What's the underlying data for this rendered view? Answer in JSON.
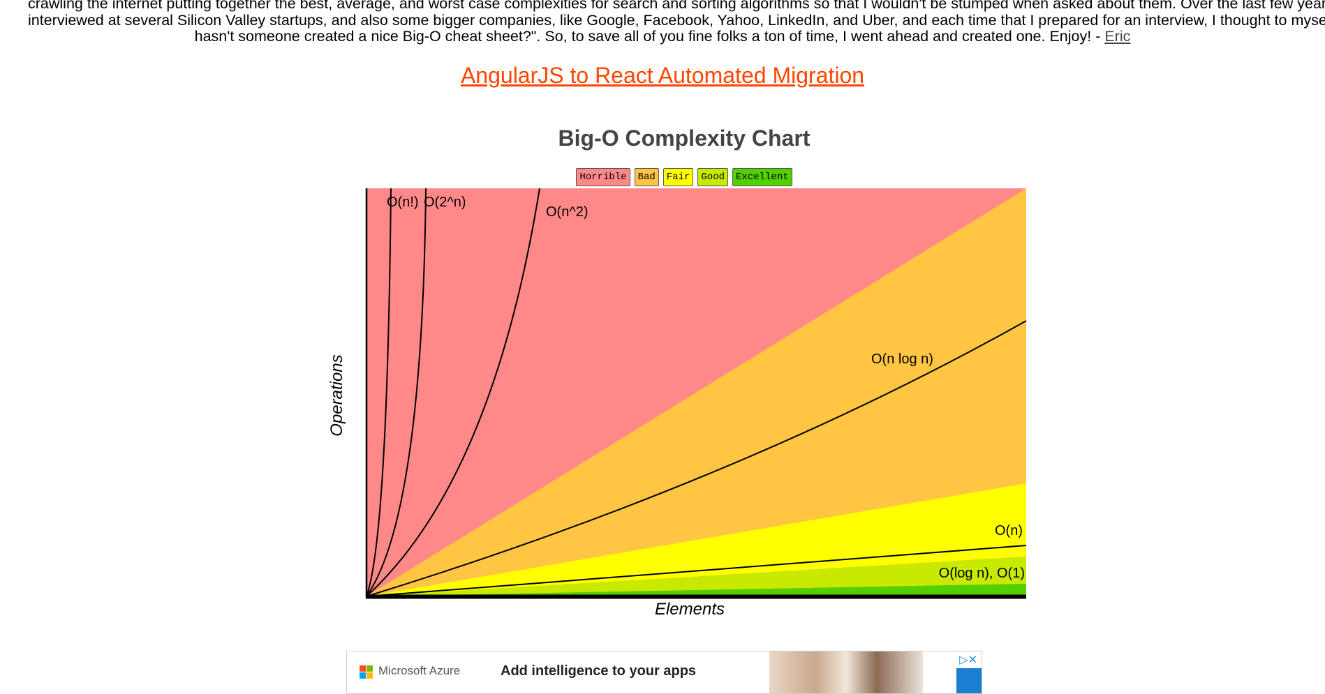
{
  "intro": {
    "line1": "crawling the internet putting together the best, average, and worst case complexities for search and sorting algorithms so that I wouldn't be stumped when asked about them.  Over the last few years, I've",
    "line2": "interviewed at several Silicon Valley startups, and also some bigger companies, like Google, Facebook, Yahoo, LinkedIn, and Uber, and each time that I prepared for an interview, I thought to myself \"Why",
    "line3": "hasn't someone created a nice Big-O cheat sheet?\".  So, to save all of you fine folks a ton of time, I went ahead and created one.  Enjoy! - ",
    "author_link": "Eric"
  },
  "promo_link": "AngularJS to React Automated Migration",
  "legend": [
    {
      "label": "Horrible",
      "color": "#ff8989"
    },
    {
      "label": "Bad",
      "color": "#ffc543"
    },
    {
      "label": "Fair",
      "color": "#ffff00"
    },
    {
      "label": "Good",
      "color": "#c8ea00"
    },
    {
      "label": "Excellent",
      "color": "#53d000"
    }
  ],
  "chart_data": {
    "type": "area",
    "title": "Big-O Complexity Chart",
    "xlabel": "Elements",
    "ylabel": "Operations",
    "grid": false,
    "legend_position": "top",
    "series": [
      {
        "name": "O(n!)"
      },
      {
        "name": "O(2^n)"
      },
      {
        "name": "O(n^2)"
      },
      {
        "name": "O(n log n)"
      },
      {
        "name": "O(n)"
      },
      {
        "name": "O(log n), O(1)"
      }
    ]
  },
  "ad": {
    "brand": "Microsoft Azure",
    "headline": "Add intelligence to your apps",
    "adchoices": "▷✕",
    "logo_colors": [
      "#f25022",
      "#7fba00",
      "#00a4ef",
      "#ffb900"
    ]
  }
}
